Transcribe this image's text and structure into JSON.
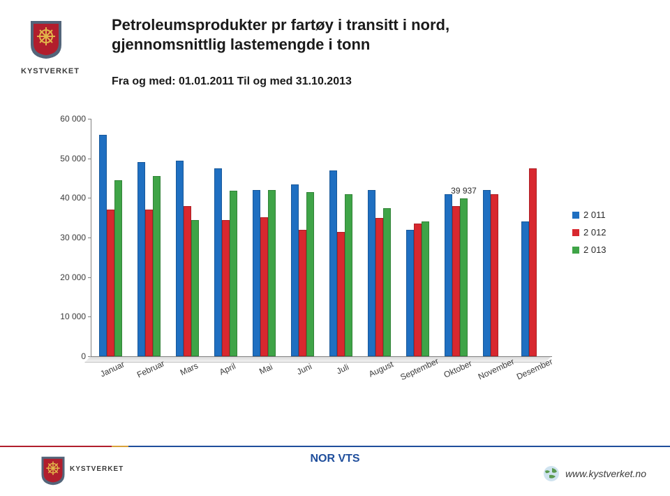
{
  "brand": {
    "name": "KYSTVERKET"
  },
  "title": {
    "line1": "Petroleumsprodukter pr fartøy i transitt i nord,",
    "line2": "gjennomsnittlig lastemengde i tonn"
  },
  "subtitle": "Fra og med: 01.01.2011   Til og med 31.10.2013",
  "chart": {
    "type": "bar",
    "ylim": [
      0,
      60000
    ],
    "ytick_step": 10000,
    "yticks": [
      "0",
      "10 000",
      "20 000",
      "30 000",
      "40 000",
      "50 000",
      "60 000"
    ],
    "categories": [
      "Januar",
      "Februar",
      "Mars",
      "April",
      "Mai",
      "Juni",
      "Juli",
      "August",
      "September",
      "Oktober",
      "November",
      "Desember"
    ],
    "series": [
      {
        "name": "2 011",
        "color": "#1f6fc1",
        "values": [
          56000,
          49000,
          49500,
          47500,
          42000,
          43500,
          47000,
          42000,
          32000,
          41000,
          42000,
          34000
        ]
      },
      {
        "name": "2 012",
        "color": "#d8282f",
        "values": [
          37000,
          37000,
          38000,
          34500,
          35200,
          32000,
          31500,
          35000,
          33500,
          38000,
          41000,
          47500
        ]
      },
      {
        "name": "2 013",
        "color": "#3fa447",
        "values": [
          44500,
          45500,
          34500,
          41800,
          42000,
          41500,
          41000,
          37500,
          34000,
          39937,
          null,
          null
        ]
      }
    ],
    "data_label": {
      "series": 2,
      "index": 9,
      "text": "39 937"
    },
    "group_gap": 0.4,
    "plot_bg": "#ffffff",
    "axis_color": "#7f7f7f",
    "label_fontsize": 12
  },
  "legend": {
    "items": [
      {
        "label": "2 011",
        "color": "#1f6fc1"
      },
      {
        "label": "2 012",
        "color": "#d8282f"
      },
      {
        "label": "2 013",
        "color": "#3fa447"
      }
    ]
  },
  "footer": {
    "line_colors": {
      "red": "#b11e2d",
      "gold": "#d8a13a",
      "blue": "#1f4e9c"
    },
    "center": "NOR VTS",
    "center_color": "#1f4e9c",
    "url": "www.kystverket.no",
    "url_color": "#3a3a3a"
  },
  "colors": {
    "shield_outer": "#53657a",
    "shield_inner": "#b11e2d",
    "wheel": "#e2b54a"
  }
}
